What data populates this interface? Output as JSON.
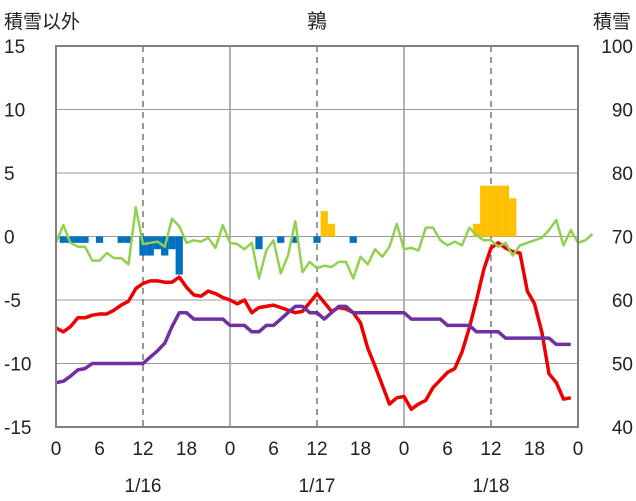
{
  "chart_data": {
    "type": "bar+line",
    "title": "鶉",
    "left_axis_label": "積雪以外",
    "right_axis_label": "積雪",
    "left_ylim": [
      -15,
      15
    ],
    "left_ticks": [
      "15",
      "10",
      "5",
      "0",
      "-5",
      "-10",
      "-15"
    ],
    "right_ylim": [
      40,
      100
    ],
    "right_ticks": [
      "100",
      "90",
      "80",
      "70",
      "60",
      "50",
      "40"
    ],
    "x_range_hours": [
      0,
      72
    ],
    "x_tick_labels": [
      "0",
      "6",
      "12",
      "18",
      "0",
      "6",
      "12",
      "18",
      "0",
      "6",
      "12",
      "18",
      "0"
    ],
    "day_labels": [
      "1/16",
      "1/17",
      "1/18"
    ],
    "grid": "day boundaries solid, 12:00 dashed",
    "colors": {
      "temperature": "#ee0000",
      "dew_point": "#7030a0",
      "wind": "#92d050",
      "precip_negative": "#0070c0",
      "precip_positive": "#ffc000",
      "frame": "#808080"
    },
    "series": [
      {
        "axis": "left",
        "color": "#ee0000",
        "points": [
          [
            0,
            -7.2
          ],
          [
            1,
            -7.5
          ],
          [
            2,
            -7.1
          ],
          [
            3,
            -6.4
          ],
          [
            4,
            -6.4
          ],
          [
            5,
            -6.2
          ],
          [
            6,
            -6.1
          ],
          [
            7,
            -6.1
          ],
          [
            8,
            -5.8
          ],
          [
            9,
            -5.4
          ],
          [
            10,
            -5.1
          ],
          [
            11,
            -4.1
          ],
          [
            12,
            -3.7
          ],
          [
            13,
            -3.5
          ],
          [
            14,
            -3.5
          ],
          [
            15,
            -3.6
          ],
          [
            16,
            -3.6
          ],
          [
            17,
            -3.2
          ],
          [
            18,
            -4.0
          ],
          [
            19,
            -4.6
          ],
          [
            20,
            -4.7
          ],
          [
            21,
            -4.3
          ],
          [
            22,
            -4.5
          ],
          [
            23,
            -4.8
          ],
          [
            24,
            -5.0
          ],
          [
            25,
            -5.3
          ],
          [
            26,
            -5.0
          ],
          [
            27,
            -6.0
          ],
          [
            28,
            -5.6
          ],
          [
            29,
            -5.5
          ],
          [
            30,
            -5.4
          ],
          [
            31,
            -5.6
          ],
          [
            32,
            -5.8
          ],
          [
            33,
            -6.0
          ],
          [
            34,
            -5.9
          ],
          [
            35,
            -5.2
          ],
          [
            36,
            -4.5
          ],
          [
            37,
            -5.2
          ],
          [
            38,
            -5.9
          ],
          [
            39,
            -5.6
          ],
          [
            40,
            -5.7
          ],
          [
            41,
            -6.0
          ],
          [
            42,
            -6.8
          ],
          [
            43,
            -8.8
          ],
          [
            44,
            -10.2
          ],
          [
            45,
            -11.7
          ],
          [
            46,
            -13.2
          ],
          [
            47,
            -12.7
          ],
          [
            48,
            -12.6
          ],
          [
            49,
            -13.6
          ],
          [
            50,
            -13.2
          ],
          [
            51,
            -12.9
          ],
          [
            52,
            -11.9
          ],
          [
            53,
            -11.3
          ],
          [
            54,
            -10.7
          ],
          [
            55,
            -10.4
          ],
          [
            56,
            -9.1
          ],
          [
            57,
            -7.2
          ],
          [
            58,
            -5.0
          ],
          [
            59,
            -2.6
          ],
          [
            60,
            -0.9
          ],
          [
            61,
            -0.5
          ],
          [
            62,
            -0.9
          ],
          [
            63,
            -1.2
          ],
          [
            64,
            -1.3
          ],
          [
            65,
            -4.3
          ],
          [
            66,
            -5.3
          ],
          [
            67,
            -7.5
          ],
          [
            68,
            -10.8
          ],
          [
            69,
            -11.5
          ],
          [
            70,
            -12.8
          ],
          [
            71,
            -12.7
          ]
        ]
      },
      {
        "axis": "left",
        "color": "#7030a0",
        "points": [
          [
            0,
            -11.5
          ],
          [
            1,
            -11.4
          ],
          [
            2,
            -11.0
          ],
          [
            3,
            -10.5
          ],
          [
            4,
            -10.4
          ],
          [
            5,
            -10.0
          ],
          [
            6,
            -10.0
          ],
          [
            12,
            -10.0
          ],
          [
            13,
            -9.5
          ],
          [
            14,
            -9.0
          ],
          [
            15,
            -8.4
          ],
          [
            16,
            -7.1
          ],
          [
            17,
            -6.0
          ],
          [
            18,
            -6.0
          ],
          [
            19,
            -6.5
          ],
          [
            23,
            -6.5
          ],
          [
            24,
            -7.0
          ],
          [
            25,
            -7.0
          ],
          [
            26,
            -7.0
          ],
          [
            27,
            -7.5
          ],
          [
            28,
            -7.5
          ],
          [
            29,
            -7.0
          ],
          [
            30,
            -7.0
          ],
          [
            31,
            -6.5
          ],
          [
            32,
            -6.0
          ],
          [
            33,
            -5.5
          ],
          [
            34,
            -5.5
          ],
          [
            35,
            -6.0
          ],
          [
            36,
            -6.0
          ],
          [
            37,
            -6.5
          ],
          [
            38,
            -6.0
          ],
          [
            39,
            -5.5
          ],
          [
            40,
            -5.5
          ],
          [
            41,
            -6.0
          ],
          [
            48,
            -6.0
          ],
          [
            49,
            -6.5
          ],
          [
            53,
            -6.5
          ],
          [
            54,
            -7.0
          ],
          [
            57,
            -7.0
          ],
          [
            58,
            -7.5
          ],
          [
            61,
            -7.5
          ],
          [
            62,
            -8.0
          ],
          [
            68,
            -8.0
          ],
          [
            69,
            -8.5
          ],
          [
            71,
            -8.5
          ]
        ]
      },
      {
        "axis": "left",
        "color": "#92d050",
        "points": [
          [
            0,
            -0.5
          ],
          [
            1,
            0.9
          ],
          [
            2,
            -0.5
          ],
          [
            3,
            -0.8
          ],
          [
            4,
            -0.8
          ],
          [
            5,
            -1.9
          ],
          [
            6,
            -1.9
          ],
          [
            7,
            -1.3
          ],
          [
            8,
            -1.7
          ],
          [
            9,
            -1.7
          ],
          [
            10,
            -2.2
          ],
          [
            11,
            2.3
          ],
          [
            12,
            -0.6
          ],
          [
            13,
            -0.5
          ],
          [
            14,
            -0.4
          ],
          [
            15,
            -0.8
          ],
          [
            16,
            1.4
          ],
          [
            17,
            0.8
          ],
          [
            18,
            -0.5
          ],
          [
            19,
            -0.3
          ],
          [
            20,
            -0.4
          ],
          [
            21,
            -0.1
          ],
          [
            22,
            -0.9
          ],
          [
            23,
            0.9
          ],
          [
            24,
            -0.5
          ],
          [
            25,
            -0.6
          ],
          [
            26,
            -1.0
          ],
          [
            27,
            -0.5
          ],
          [
            28,
            -3.3
          ],
          [
            29,
            -1.1
          ],
          [
            30,
            -0.3
          ],
          [
            31,
            -2.9
          ],
          [
            32,
            -1.5
          ],
          [
            33,
            1.2
          ],
          [
            34,
            -2.8
          ],
          [
            35,
            -2.0
          ],
          [
            36,
            -2.5
          ],
          [
            37,
            -2.3
          ],
          [
            38,
            -2.4
          ],
          [
            39,
            -2.0
          ],
          [
            40,
            -2.0
          ],
          [
            41,
            -3.3
          ],
          [
            42,
            -1.6
          ],
          [
            43,
            -2.2
          ],
          [
            44,
            -1.0
          ],
          [
            45,
            -1.6
          ],
          [
            46,
            -0.8
          ],
          [
            47,
            1.0
          ],
          [
            48,
            -1.0
          ],
          [
            49,
            -0.9
          ],
          [
            50,
            -1.1
          ],
          [
            51,
            0.7
          ],
          [
            52,
            0.7
          ],
          [
            53,
            -0.3
          ],
          [
            54,
            -0.7
          ],
          [
            55,
            -0.4
          ],
          [
            56,
            -0.7
          ],
          [
            57,
            0.7
          ],
          [
            58,
            0.1
          ],
          [
            59,
            -0.3
          ],
          [
            60,
            -0.3
          ],
          [
            61,
            -0.8
          ],
          [
            62,
            -0.5
          ],
          [
            63,
            -1.5
          ],
          [
            64,
            -0.7
          ],
          [
            65,
            -0.5
          ],
          [
            66,
            -0.3
          ],
          [
            67,
            -0.1
          ],
          [
            68,
            0.5
          ],
          [
            69,
            1.3
          ],
          [
            70,
            -0.7
          ],
          [
            71,
            0.5
          ],
          [
            72,
            -0.5
          ],
          [
            73,
            -0.3
          ],
          [
            74,
            0.2
          ]
        ]
      },
      {
        "axis": "left",
        "type": "bar",
        "bars": [
          [
            1,
            -0.5
          ],
          [
            2,
            -0.5
          ],
          [
            3,
            -0.5
          ],
          [
            4,
            -0.5
          ],
          [
            6,
            -0.5
          ],
          [
            9,
            -0.5
          ],
          [
            10,
            -0.5
          ],
          [
            12,
            -1.5
          ],
          [
            13,
            -1.5
          ],
          [
            14,
            -1.0
          ],
          [
            15,
            -1.5
          ],
          [
            16,
            -1.0
          ],
          [
            17,
            -3.0
          ],
          [
            28,
            -1.0
          ],
          [
            31,
            -0.5
          ],
          [
            33,
            -0.5
          ],
          [
            36,
            -0.5
          ],
          [
            37,
            2.0
          ],
          [
            38,
            1.0
          ],
          [
            41,
            -0.5
          ],
          [
            58,
            1.0
          ],
          [
            59,
            4.0
          ],
          [
            60,
            4.0
          ],
          [
            61,
            4.0
          ],
          [
            62,
            4.0
          ],
          [
            63,
            3.0
          ]
        ]
      }
    ]
  }
}
